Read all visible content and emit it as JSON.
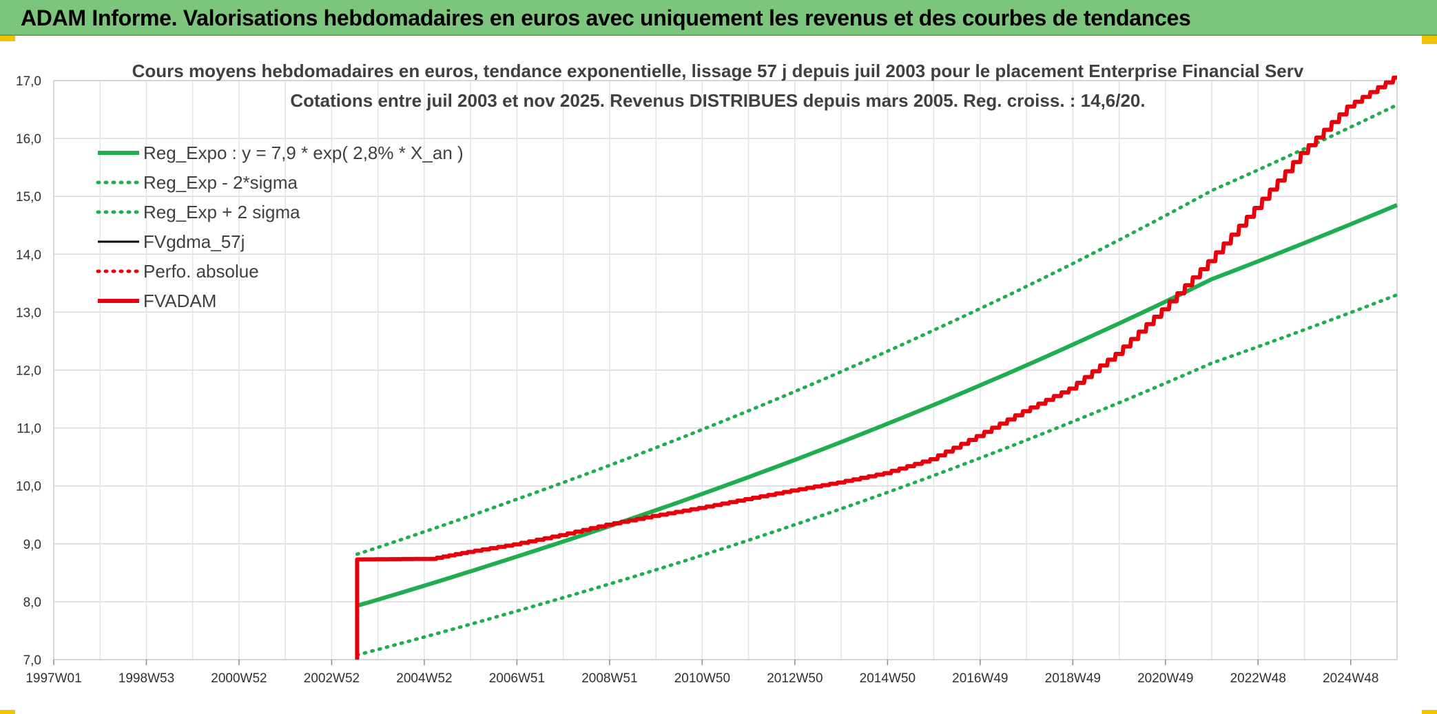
{
  "header": {
    "title": "ADAM Informe. Valorisations hebdomadaires en euros avec uniquement les revenus et des courbes de tendances"
  },
  "colors": {
    "banner": "#7cc57c",
    "trend": "#1fad4f",
    "fvadam": "#e8000b",
    "perf": "#e8000b",
    "fvgdma": "#000000",
    "accent": "#f2c400"
  },
  "chart_data": {
    "type": "line",
    "title_line1": "Cours moyens hebdomadaires en euros, tendance exponentielle, lissage 57 j depuis juil 2003 pour le placement Enterprise Financial Serv",
    "title_line2": "Cotations entre juil 2003 et nov 2025. Revenus DISTRIBUES depuis mars 2005. Reg. croiss. : 14,6/20.",
    "xlabel": "",
    "ylabel": "",
    "xlim": [
      1997.0,
      2026.0
    ],
    "ylim": [
      7.0,
      17.0
    ],
    "y_ticks": [
      "7,0",
      "8,0",
      "9,0",
      "10,0",
      "11,0",
      "12,0",
      "13,0",
      "14,0",
      "15,0",
      "16,0",
      "17,0"
    ],
    "x_ticks": [
      {
        "x": 1997.0,
        "label": "1997W01"
      },
      {
        "x": 1999.0,
        "label": "1998W53"
      },
      {
        "x": 2001.0,
        "label": "2000W52"
      },
      {
        "x": 2003.0,
        "label": "2002W52"
      },
      {
        "x": 2005.0,
        "label": "2004W52"
      },
      {
        "x": 2007.0,
        "label": "2006W51"
      },
      {
        "x": 2009.0,
        "label": "2008W51"
      },
      {
        "x": 2011.0,
        "label": "2010W50"
      },
      {
        "x": 2013.0,
        "label": "2012W50"
      },
      {
        "x": 2015.0,
        "label": "2014W50"
      },
      {
        "x": 2017.0,
        "label": "2016W49"
      },
      {
        "x": 2019.0,
        "label": "2018W49"
      },
      {
        "x": 2021.0,
        "label": "2020W49"
      },
      {
        "x": 2023.0,
        "label": "2022W48"
      },
      {
        "x": 2025.0,
        "label": "2024W48"
      }
    ],
    "minor_gridlines_per_major": 2,
    "grid": true,
    "legend_position": "top-left",
    "series": [
      {
        "name": "Reg_Expo : y = 7,9 * exp( 2,8% *  X_an )",
        "style": "solid-thick",
        "color": "#1fad4f",
        "x": [
          2003.55,
          2007,
          2010,
          2013,
          2016,
          2019,
          2022,
          2026
        ],
        "y": [
          7.93,
          8.78,
          9.58,
          10.45,
          11.4,
          12.44,
          13.57,
          14.85
        ]
      },
      {
        "name": "Reg_Exp - 2*sigma",
        "style": "dotted",
        "color": "#1fad4f",
        "x": [
          2003.55,
          2007,
          2010,
          2013,
          2016,
          2019,
          2022,
          2026
        ],
        "y": [
          7.08,
          7.84,
          8.55,
          9.33,
          10.18,
          11.11,
          12.12,
          13.3
        ]
      },
      {
        "name": "Reg_Exp + 2 sigma",
        "style": "dotted",
        "color": "#1fad4f",
        "x": [
          2003.55,
          2007,
          2010,
          2013,
          2016,
          2019,
          2022,
          2026
        ],
        "y": [
          8.82,
          9.77,
          10.66,
          11.63,
          12.69,
          13.84,
          15.1,
          16.58
        ]
      },
      {
        "name": "FVgdma_57j",
        "style": "solid",
        "color": "#000000",
        "x": [],
        "y": []
      },
      {
        "name": "Perfo. absolue",
        "style": "dotted",
        "color": "#e8000b",
        "x": [],
        "y": []
      },
      {
        "name": "FVADAM",
        "style": "solid-thick-steps",
        "color": "#e8000b",
        "x": [
          2003.55,
          2003.55,
          2005.2,
          2006,
          2007,
          2008,
          2009,
          2010,
          2011,
          2012,
          2013,
          2014,
          2015,
          2016,
          2017,
          2018,
          2019,
          2020,
          2021,
          2022,
          2023,
          2024,
          2025,
          2026
        ],
        "y": [
          7.0,
          8.73,
          8.74,
          8.86,
          8.99,
          9.15,
          9.33,
          9.48,
          9.62,
          9.77,
          9.92,
          10.06,
          10.22,
          10.46,
          10.86,
          11.29,
          11.68,
          12.28,
          13.05,
          13.88,
          14.8,
          15.75,
          16.55,
          17.05
        ]
      }
    ]
  }
}
